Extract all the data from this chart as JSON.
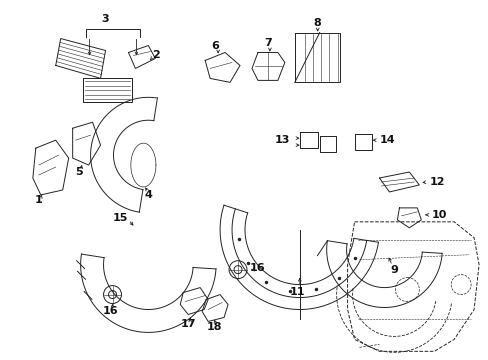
{
  "background_color": "#ffffff",
  "fig_width": 4.89,
  "fig_height": 3.6,
  "dpi": 100,
  "line_color": "#222222",
  "label_color": "#111111",
  "label_fontsize": 7.5,
  "lw": 0.7
}
